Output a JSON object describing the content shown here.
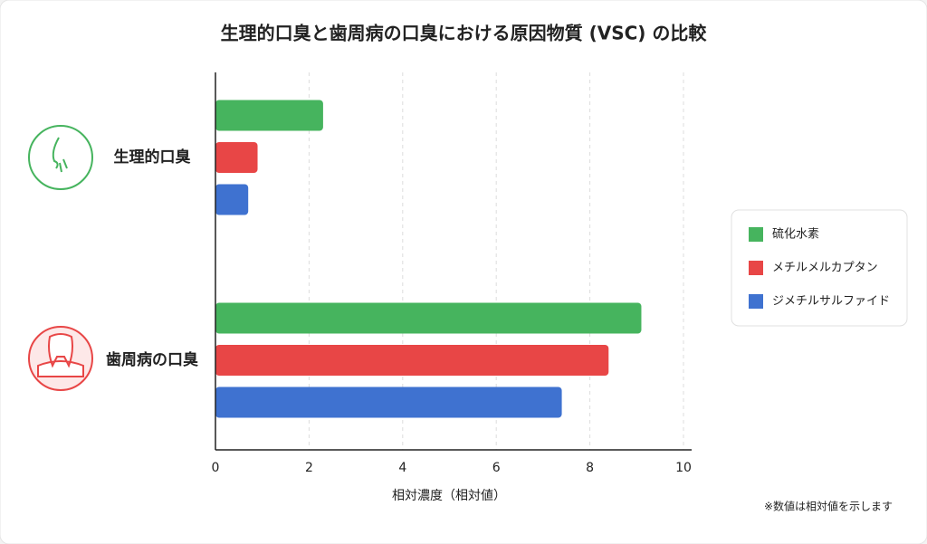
{
  "chart_data": {
    "type": "hbar",
    "title": "生理的口臭と歯周病の口臭における原因物質 (VSC) の比較",
    "categories": [
      "生理的口臭",
      "歯周病の口臭"
    ],
    "series": [
      {
        "name": "硫化水素",
        "color": "#46b45e",
        "values": [
          2.3,
          9.1
        ]
      },
      {
        "name": "メチルメルカプタン",
        "color": "#e84646",
        "values": [
          0.9,
          8.4
        ]
      },
      {
        "name": "ジメチルサルファイド",
        "color": "#3f72d0",
        "values": [
          0.7,
          7.4
        ]
      }
    ],
    "xlim": [
      0,
      10
    ],
    "xticks": [
      0,
      2,
      4,
      6,
      8,
      10
    ],
    "xlabel": "相対濃度（相対値）",
    "grid": true,
    "legend": "right",
    "note": "※数値は相対値を示します"
  }
}
